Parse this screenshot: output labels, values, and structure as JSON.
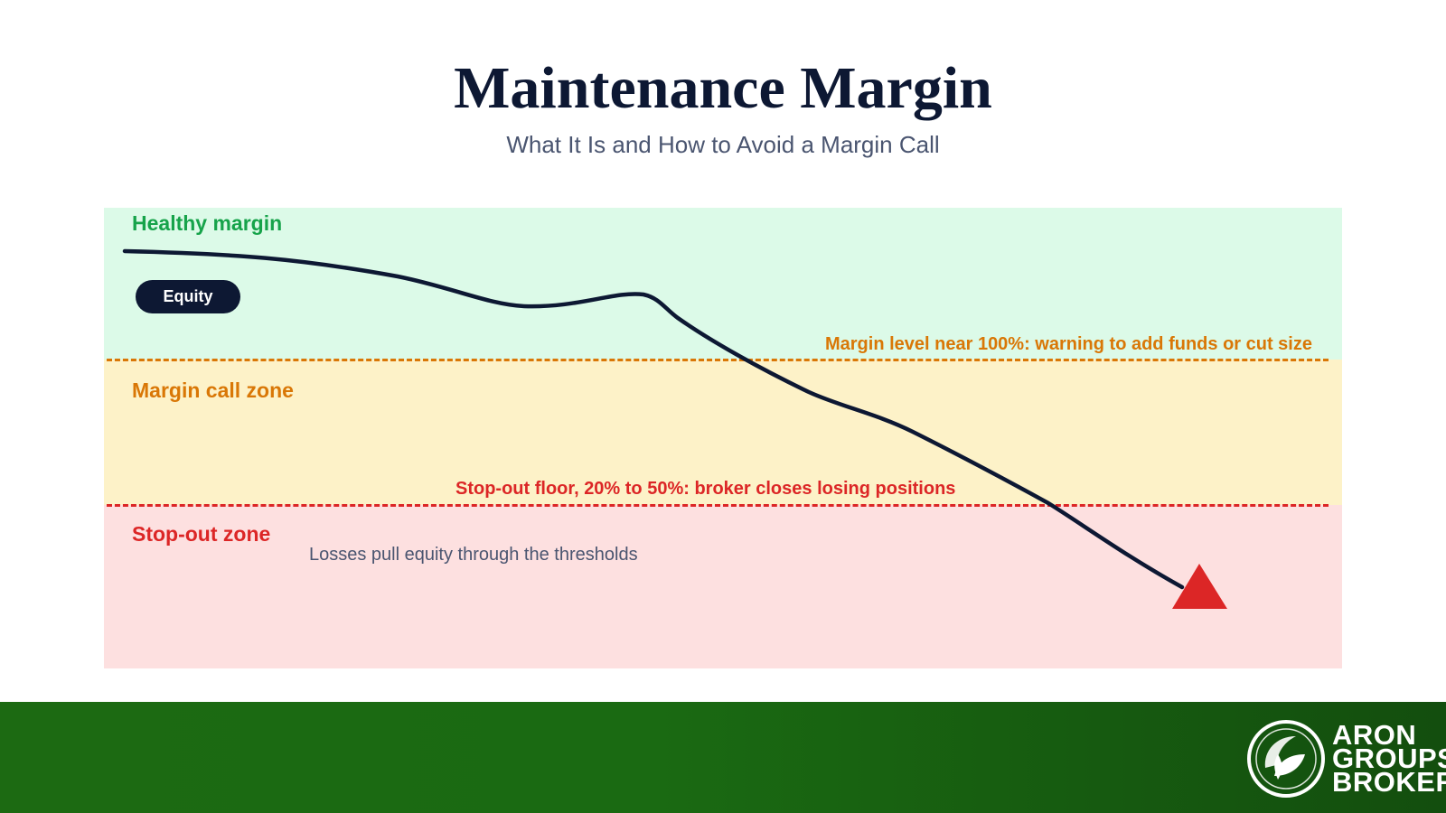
{
  "header": {
    "title": "Maintenance Margin",
    "subtitle": "What It Is and How to Avoid a Margin Call"
  },
  "zones": {
    "healthy": "Healthy margin",
    "margin_call": "Margin call zone",
    "stop_out": "Stop-out zone"
  },
  "thresholds": {
    "warning_note": "Margin level near 100%: warning to add funds or cut size",
    "stop_out_note": "Stop-out floor, 20% to 50%: broker closes losing positions"
  },
  "equity_label": "Equity",
  "caption": "Losses pull equity through the thresholds",
  "colors": {
    "healthy": "#16a34a",
    "margin_call": "#d97706",
    "stop_out": "#dc2626",
    "equity_line": "#0d1833",
    "footer_green": "#1a6a12"
  },
  "brand": {
    "lines": [
      "ARON",
      "GROUPS",
      "BROKER"
    ],
    "icon": "leaf-in-circle-icon"
  }
}
